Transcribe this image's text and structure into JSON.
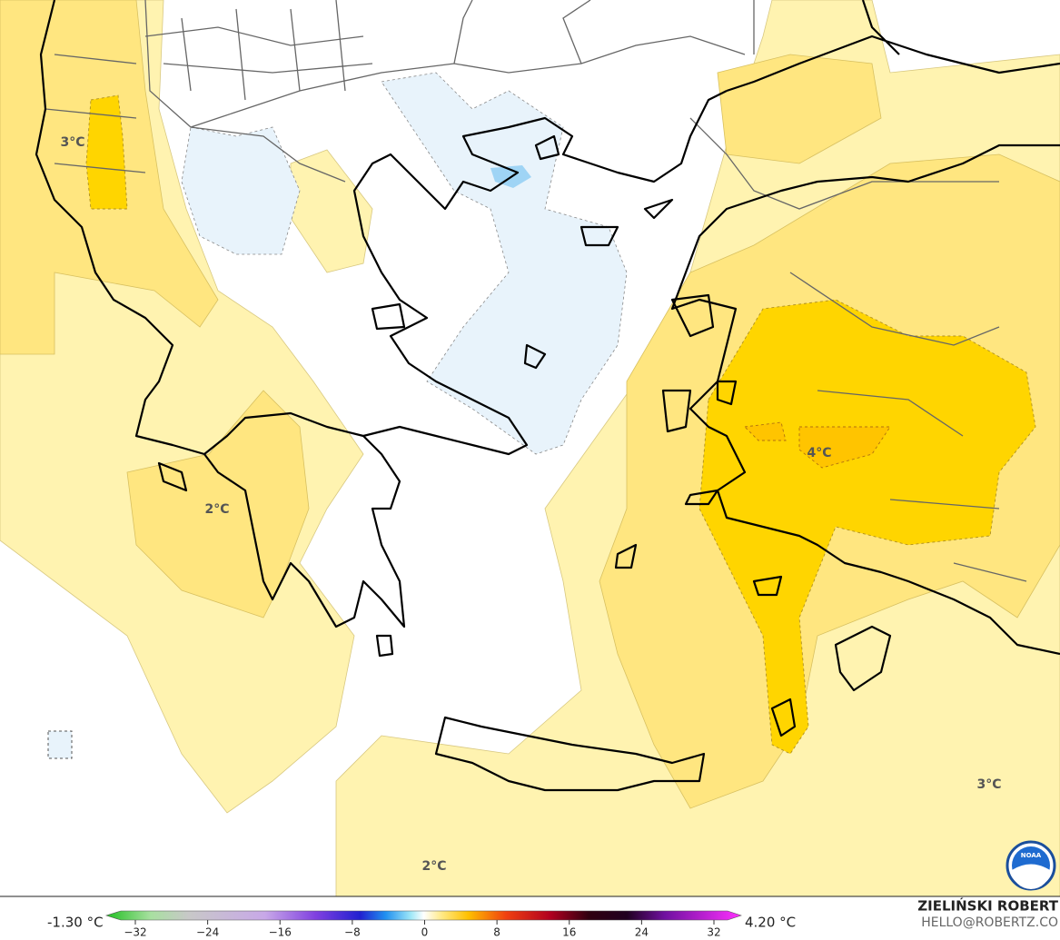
{
  "map": {
    "labels": [
      {
        "text": "3°C"
      },
      {
        "text": "2°C"
      },
      {
        "text": "4°C"
      },
      {
        "text": "3°C"
      },
      {
        "text": "2°C"
      }
    ]
  },
  "colorbar": {
    "min_label": "-1.30 °C",
    "max_label": "4.20 °C",
    "ticks": [
      {
        "value": -32,
        "label": "−32"
      },
      {
        "value": -24,
        "label": "−24"
      },
      {
        "value": -16,
        "label": "−16"
      },
      {
        "value": -8,
        "label": "−8"
      },
      0,
      8,
      16,
      24,
      32
    ]
  },
  "credits": {
    "author": "ZIELIŃSKI ROBERT",
    "contact": "HELLO@ROBERTZ.CO",
    "logo": "NOAA"
  }
}
